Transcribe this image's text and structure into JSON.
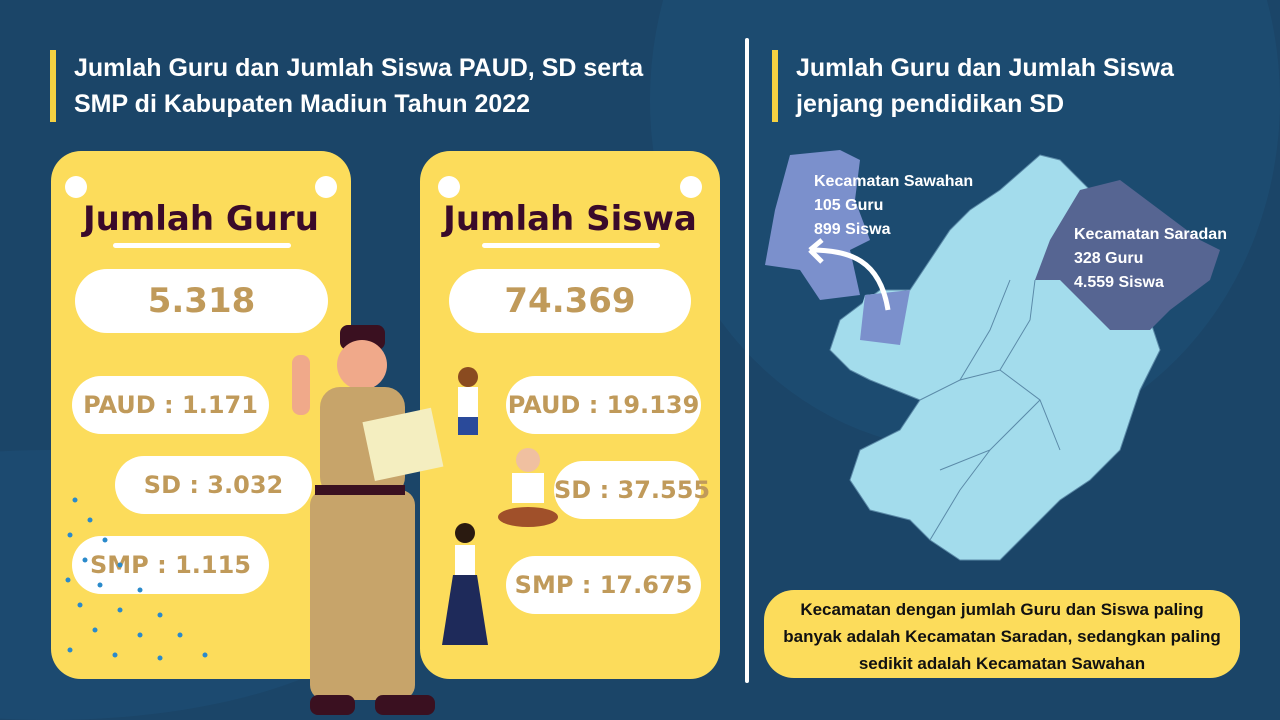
{
  "left": {
    "title_line1": "Jumlah Guru dan Jumlah Siswa PAUD, SD serta",
    "title_line2": "SMP di Kabupaten Madiun Tahun 2022",
    "guru": {
      "heading": "Jumlah Guru",
      "total": "5.318",
      "paud": "PAUD : 1.171",
      "sd": "SD : 3.032",
      "smp": "SMP : 1.115"
    },
    "siswa": {
      "heading": "Jumlah Siswa",
      "total": "74.369",
      "paud": "PAUD : 19.139",
      "sd": "SD : 37.555",
      "smp": "SMP : 17.675"
    }
  },
  "right": {
    "title_line1": "Jumlah Guru dan Jumlah Siswa",
    "title_line2": "jenjang pendidikan SD",
    "sawahan": {
      "name": "Kecamatan Sawahan",
      "guru": "105 Guru",
      "siswa": "899 Siswa"
    },
    "saradan": {
      "name": "Kecamatan Saradan",
      "guru": "328 Guru",
      "siswa": "4.559 Siswa"
    },
    "note": "Kecamatan dengan jumlah Guru dan Siswa paling banyak adalah Kecamatan Saradan, sedangkan paling sedikit adalah Kecamatan Sawahan"
  },
  "colors": {
    "background": "#1b4568",
    "card": "#fcdc5b",
    "accent": "#f5d142",
    "map": "#a3dcec",
    "sawahan": "#7b90cc",
    "saradan": "#566592"
  }
}
